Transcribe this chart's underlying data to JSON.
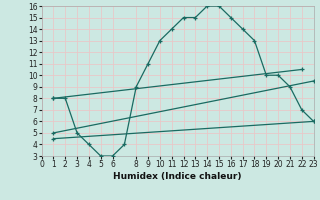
{
  "xlabel": "Humidex (Indice chaleur)",
  "bg_color": "#cce8e2",
  "grid_color": "#e8c8c8",
  "line_color": "#1a6b62",
  "xlim": [
    0,
    23
  ],
  "ylim": [
    3,
    16
  ],
  "xticks": [
    0,
    1,
    2,
    3,
    4,
    5,
    6,
    8,
    9,
    10,
    11,
    12,
    13,
    14,
    15,
    16,
    17,
    18,
    19,
    20,
    21,
    22,
    23
  ],
  "yticks": [
    3,
    4,
    5,
    6,
    7,
    8,
    9,
    10,
    11,
    12,
    13,
    14,
    15,
    16
  ],
  "curve_x": [
    1,
    2,
    3,
    4,
    5,
    6,
    7,
    8,
    9,
    10,
    11,
    12,
    13,
    14,
    15,
    16,
    17,
    18,
    19,
    20,
    21,
    22,
    23
  ],
  "curve_y": [
    8,
    8,
    5,
    4,
    3,
    3,
    4,
    9,
    11,
    13,
    14,
    15,
    15,
    16,
    16,
    15,
    14,
    13,
    10,
    10,
    9,
    7,
    6
  ],
  "line2_x": [
    1,
    22
  ],
  "line2_y": [
    8,
    10.5
  ],
  "line3_x": [
    1,
    23
  ],
  "line3_y": [
    5,
    9.5
  ],
  "line4_x": [
    1,
    23
  ],
  "line4_y": [
    4.5,
    6.0
  ]
}
